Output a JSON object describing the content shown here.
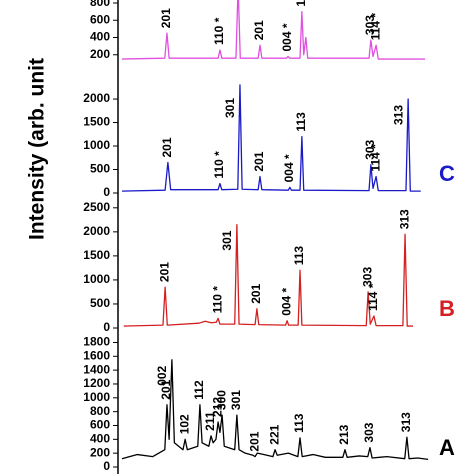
{
  "y_axis_label": "Intensity (arb. unit",
  "chart_data": [
    {
      "type": "line",
      "color": "#e050e0",
      "ylim": [
        0,
        850
      ],
      "yticks": [
        200,
        400,
        600,
        800
      ],
      "xlim": [
        0,
        100
      ],
      "x": [
        0,
        13.9,
        14.6,
        15.3,
        31.2,
        31.8,
        32.4,
        37,
        37.7,
        38.4,
        44.2,
        44.8,
        45.4,
        53.4,
        53.9,
        54.4,
        57.8,
        58.4,
        59,
        59.7,
        60.3,
        80.2,
        80.8,
        81.5,
        82.5,
        83.2,
        98.4
      ],
      "values": [
        150,
        160,
        450,
        160,
        160,
        255,
        160,
        160,
        1000,
        160,
        160,
        310,
        160,
        160,
        180,
        160,
        160,
        700,
        200,
        400,
        160,
        160,
        370,
        180,
        310,
        150,
        150
      ],
      "annotations": [
        {
          "text": "201",
          "x": 14.6
        },
        {
          "text": "110 *",
          "x": 31.8
        },
        {
          "text": "201",
          "x": 44.8
        },
        {
          "text": "004 *",
          "x": 53.9
        },
        {
          "text": "1",
          "x": 58.4
        },
        {
          "text": "303",
          "x": 80.8
        },
        {
          "text": "114 *",
          "x": 82.5
        }
      ]
    },
    {
      "type": "line",
      "color": "#1a1ac8",
      "label": "C",
      "ylim": [
        0,
        2150
      ],
      "yticks": [
        0,
        500,
        1000,
        1500,
        2000
      ],
      "xlim": [
        0,
        100
      ],
      "x": [
        0,
        14,
        14.9,
        15.8,
        31.2,
        31.8,
        32.4,
        37.6,
        38.3,
        39,
        44.2,
        44.8,
        45.4,
        54,
        54.5,
        55,
        57.8,
        58.4,
        59,
        80.2,
        80.8,
        81.5,
        82.5,
        83.2,
        92.2,
        92.9,
        93.6,
        97
      ],
      "values": [
        40,
        60,
        650,
        70,
        70,
        200,
        70,
        80,
        2300,
        80,
        70,
        350,
        70,
        60,
        120,
        60,
        60,
        1200,
        60,
        50,
        600,
        100,
        350,
        50,
        50,
        2000,
        40,
        40
      ],
      "annotations": [
        {
          "text": "201",
          "x": 14.9
        },
        {
          "text": "110 *",
          "x": 31.8
        },
        {
          "text": "301",
          "x": 38.3
        },
        {
          "text": "201",
          "x": 44.8
        },
        {
          "text": "004 *",
          "x": 54.5
        },
        {
          "text": "113",
          "x": 58.4
        },
        {
          "text": "303",
          "x": 80.8
        },
        {
          "text": "114 *",
          "x": 82.5
        },
        {
          "text": "313",
          "x": 92.9
        }
      ]
    },
    {
      "type": "line",
      "color": "#d42020",
      "label": "B",
      "ylim": [
        0,
        2600
      ],
      "yticks": [
        0,
        500,
        1000,
        1500,
        2000,
        2500
      ],
      "xlim": [
        0,
        100
      ],
      "x": [
        0.6,
        13.3,
        14,
        14.7,
        25,
        27,
        29,
        30.6,
        31.2,
        31.8,
        36.6,
        37.3,
        38,
        43.2,
        43.8,
        44.4,
        53.1,
        53.6,
        54.1,
        57.2,
        57.8,
        58.4,
        79.3,
        79.9,
        80.6,
        81.8,
        82.5,
        91.2,
        91.9,
        92.6,
        94.5
      ],
      "values": [
        40,
        60,
        850,
        60,
        100,
        140,
        110,
        120,
        200,
        80,
        80,
        2150,
        80,
        70,
        400,
        70,
        60,
        150,
        60,
        60,
        1200,
        60,
        50,
        750,
        80,
        250,
        50,
        50,
        1950,
        40,
        40
      ],
      "annotations": [
        {
          "text": "201",
          "x": 14
        },
        {
          "text": "110 *",
          "x": 31.2
        },
        {
          "text": "301",
          "x": 37.3
        },
        {
          "text": "201",
          "x": 43.8
        },
        {
          "text": "004 *",
          "x": 53.6
        },
        {
          "text": "113",
          "x": 57.8
        },
        {
          "text": "303",
          "x": 79.9
        },
        {
          "text": "114 *",
          "x": 81.8
        },
        {
          "text": "313",
          "x": 91.9
        }
      ]
    },
    {
      "type": "line",
      "color": "#000000",
      "label": "A",
      "ylim": [
        0,
        1850
      ],
      "yticks": [
        0,
        200,
        400,
        600,
        800,
        1000,
        1200,
        1400,
        1600,
        1800
      ],
      "xlim": [
        0,
        100
      ],
      "x": [
        0,
        5,
        10,
        13.9,
        14.6,
        15.3,
        16.2,
        17,
        19.8,
        20.5,
        21.2,
        24.6,
        25.3,
        26,
        28.2,
        28.9,
        29.6,
        30.5,
        31.2,
        31.8,
        32.5,
        33.2,
        36.6,
        37.3,
        38,
        40,
        42.5,
        43.2,
        43.9,
        46,
        49,
        49.7,
        50.4,
        54,
        57.1,
        57.8,
        58.5,
        62,
        66,
        71.7,
        72.4,
        73.1,
        77,
        79.8,
        80.5,
        81.2,
        86,
        91.8,
        92.5,
        93.2,
        96,
        99.4
      ],
      "values": [
        120,
        180,
        150,
        250,
        900,
        400,
        1550,
        350,
        250,
        400,
        250,
        300,
        900,
        350,
        300,
        450,
        350,
        400,
        650,
        500,
        750,
        300,
        250,
        750,
        250,
        200,
        170,
        150,
        200,
        180,
        150,
        250,
        170,
        200,
        150,
        420,
        150,
        180,
        140,
        140,
        250,
        140,
        160,
        150,
        280,
        130,
        150,
        120,
        430,
        120,
        130,
        110
      ],
      "annotations": [
        {
          "text": "201",
          "x": 14.6
        },
        {
          "text": "002",
          "x": 16.2
        },
        {
          "text": "102",
          "x": 20.5
        },
        {
          "text": "112",
          "x": 25.3
        },
        {
          "text": "211",
          "x": 28.9
        },
        {
          "text": "212",
          "x": 31.2
        },
        {
          "text": "300",
          "x": 32.5
        },
        {
          "text": "301",
          "x": 37.3
        },
        {
          "text": "201",
          "x": 43.2
        },
        {
          "text": "221",
          "x": 49.7
        },
        {
          "text": "113",
          "x": 57.8
        },
        {
          "text": "213",
          "x": 72.4
        },
        {
          "text": "303",
          "x": 80.5
        },
        {
          "text": "313",
          "x": 92.5
        }
      ]
    }
  ]
}
